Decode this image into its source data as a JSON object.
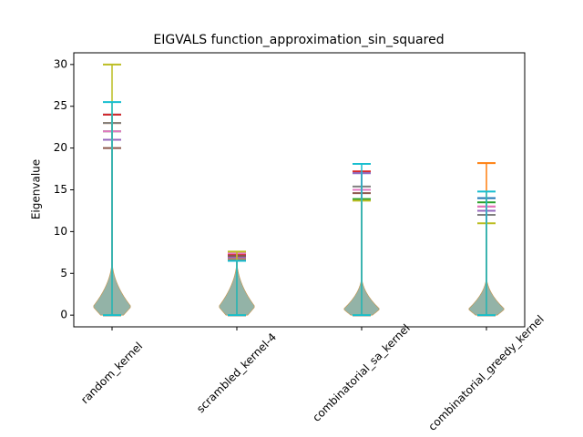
{
  "chart_data": {
    "type": "violin",
    "title": "EIGVALS function_approximation_sin_squared",
    "y_label": "Eigenvalue",
    "categories": [
      "random_kernel",
      "scrambled_kernel-4",
      "combinatorial_sa_kernel",
      "combinatorial_greedy_kernel"
    ],
    "series": [
      {
        "color": "#1f77b4",
        "values": [
          24,
          7.0,
          17.0,
          14.0
        ],
        "mins": [
          0,
          0,
          0,
          0
        ]
      },
      {
        "color": "#ff7f0e",
        "values": [
          23,
          6.8,
          13.8,
          18.2
        ],
        "mins": [
          0,
          0,
          0,
          0
        ]
      },
      {
        "color": "#2ca02c",
        "values": [
          22,
          7.2,
          13.9,
          13.5
        ],
        "mins": [
          0,
          0,
          0,
          0
        ]
      },
      {
        "color": "#d62728",
        "values": [
          24,
          7.3,
          17.2,
          13.0
        ],
        "mins": [
          0,
          0,
          0,
          0
        ]
      },
      {
        "color": "#9467bd",
        "values": [
          21,
          6.9,
          17.0,
          12.5
        ],
        "mins": [
          0,
          0,
          0,
          0
        ]
      },
      {
        "color": "#8c564b",
        "values": [
          20,
          7.1,
          14.6,
          12.0
        ],
        "mins": [
          0,
          0,
          0,
          0
        ]
      },
      {
        "color": "#e377c2",
        "values": [
          22,
          7.4,
          15.0,
          13.0
        ],
        "mins": [
          0,
          0,
          0,
          0
        ]
      },
      {
        "color": "#7f7f7f",
        "values": [
          23,
          6.6,
          15.4,
          12.0
        ],
        "mins": [
          0,
          0,
          0,
          0
        ]
      },
      {
        "color": "#bcbd22",
        "values": [
          30,
          7.6,
          13.7,
          11.0
        ],
        "mins": [
          0,
          0,
          0,
          0
        ]
      },
      {
        "color": "#17becf",
        "values": [
          25.5,
          6.5,
          18.1,
          14.8
        ],
        "mins": [
          0,
          0,
          0,
          0
        ]
      }
    ],
    "ylim": [
      -1.4,
      31.4
    ],
    "yticks": [
      0,
      5,
      10,
      15,
      20,
      25,
      30
    ],
    "grid": false
  }
}
